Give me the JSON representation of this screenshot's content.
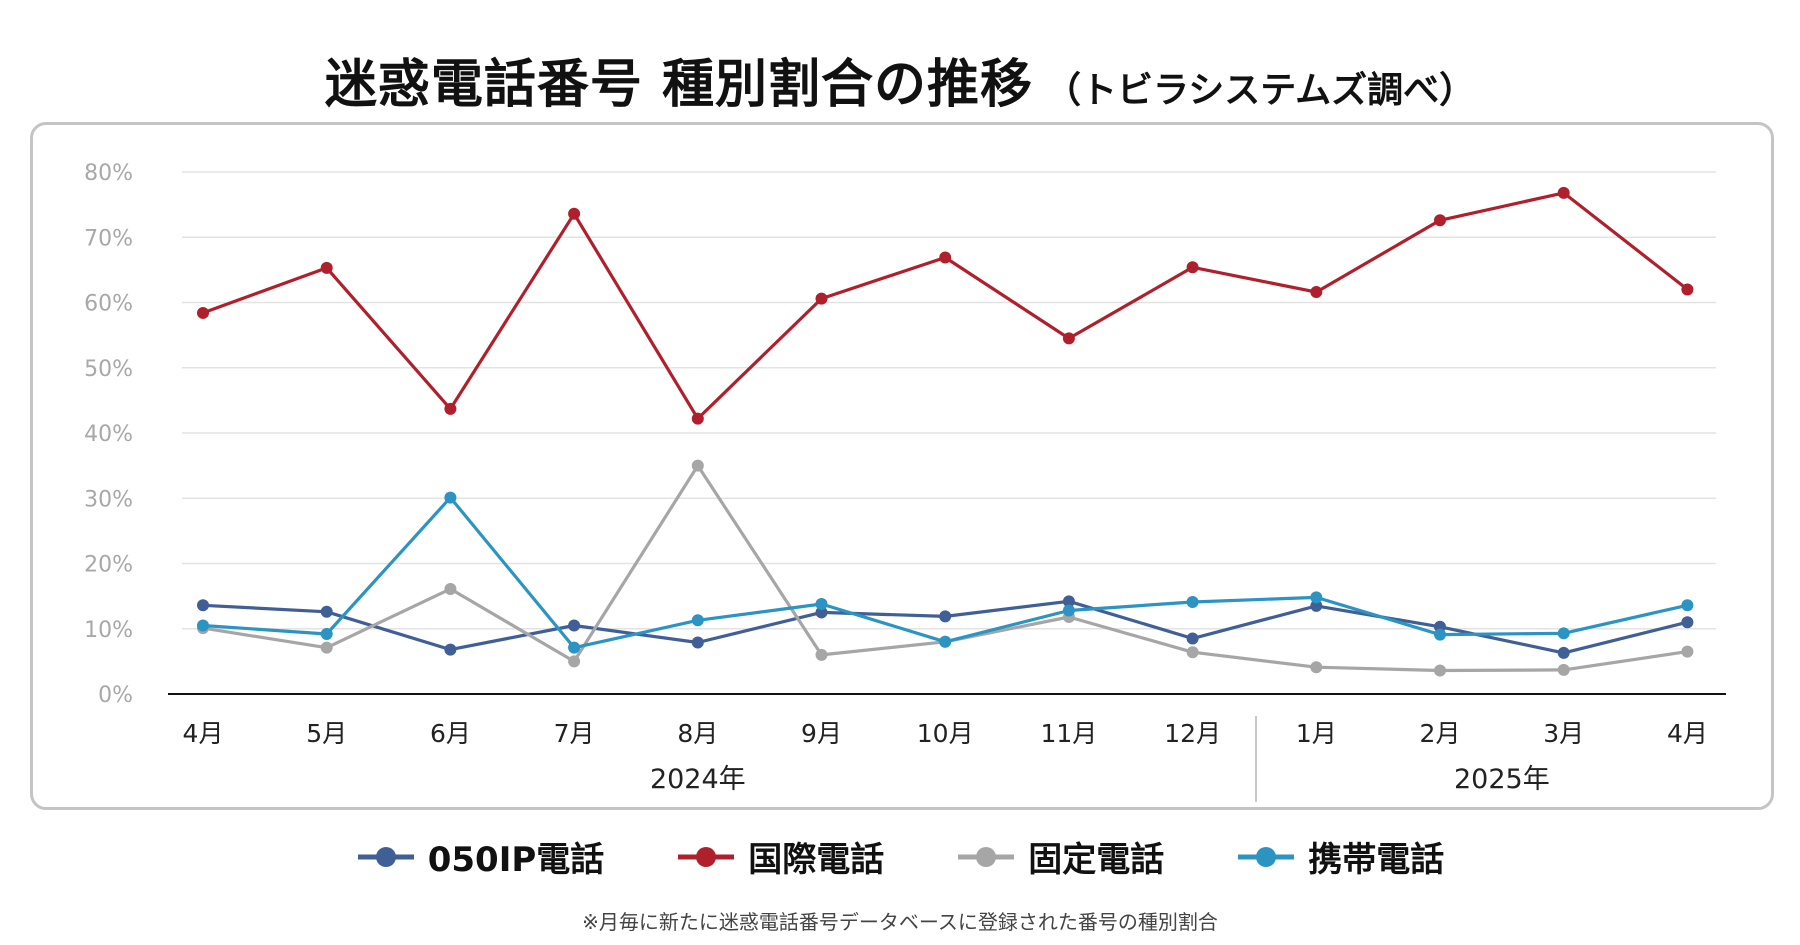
{
  "title": {
    "main": "迷惑電話番号 種別割合の推移",
    "sub": "（トビラシステムズ調べ）"
  },
  "footnote": "※月毎に新たに迷惑電話番号データベースに登録された番号の種別割合",
  "chart_data": {
    "type": "line",
    "title": "迷惑電話番号 種別割合の推移",
    "categories": [
      "4月",
      "5月",
      "6月",
      "7月",
      "8月",
      "9月",
      "10月",
      "11月",
      "12月",
      "1月",
      "2月",
      "3月",
      "4月"
    ],
    "year_groups": [
      {
        "label": "2024年",
        "start": 0,
        "end": 8
      },
      {
        "label": "2025年",
        "start": 9,
        "end": 12
      }
    ],
    "yticks": [
      "0%",
      "10%",
      "20%",
      "30%",
      "40%",
      "50%",
      "60%",
      "70%",
      "80%"
    ],
    "ylim": [
      0,
      80
    ],
    "grid": true,
    "legend_position": "bottom",
    "series": [
      {
        "name": "050IP電話",
        "color": "#3F5F96",
        "values": [
          13.6,
          12.6,
          6.8,
          10.5,
          7.9,
          12.5,
          11.9,
          14.2,
          8.5,
          13.5,
          10.3,
          6.3,
          11.0
        ]
      },
      {
        "name": "国際電話",
        "color": "#B0202C",
        "values": [
          58.4,
          65.3,
          43.7,
          73.6,
          42.2,
          60.6,
          66.9,
          54.5,
          65.4,
          61.6,
          72.6,
          76.8,
          62.0
        ]
      },
      {
        "name": "固定電話",
        "color": "#A6A6A6",
        "values": [
          10.1,
          7.1,
          16.1,
          5.0,
          35.0,
          6.0,
          8.0,
          11.8,
          6.4,
          4.1,
          3.6,
          3.7,
          6.5
        ]
      },
      {
        "name": "携帯電話",
        "color": "#2B94C3",
        "values": [
          10.5,
          9.2,
          30.1,
          7.1,
          11.3,
          13.8,
          8.0,
          12.8,
          14.1,
          14.8,
          9.1,
          9.3,
          13.6
        ]
      }
    ]
  }
}
